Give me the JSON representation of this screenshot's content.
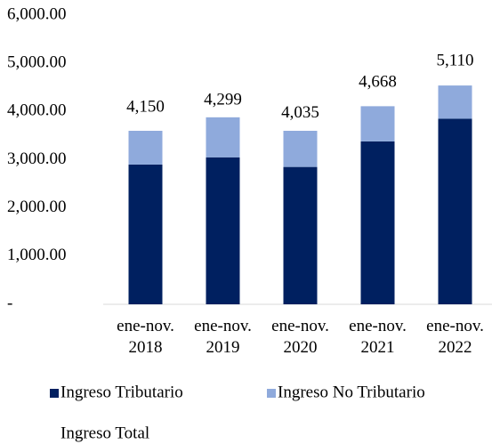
{
  "chart_data": {
    "type": "bar",
    "stacked": true,
    "categories": [
      "ene-nov. 2018",
      "ene-nov. 2019",
      "ene-nov. 2020",
      "ene-nov. 2021",
      "ene-nov. 2022"
    ],
    "series": [
      {
        "name": "Ingreso Tributario",
        "color": "#002060",
        "values": [
          2900,
          3050,
          2850,
          3380,
          3850
        ]
      },
      {
        "name": "Ingreso No Tributario",
        "color": "#8faadc",
        "values": [
          700,
          830,
          750,
          730,
          690
        ]
      },
      {
        "name": "Ingreso Total",
        "type": "line",
        "color": "none",
        "values": [
          4150,
          4299,
          4035,
          4668,
          5110
        ],
        "value_labels": [
          "4,150",
          "4,299",
          "4,035",
          "4,668",
          "5,110"
        ]
      }
    ],
    "ylim": [
      0,
      6000
    ],
    "yticks": [
      {
        "value": 0,
        "label": "-"
      },
      {
        "value": 1000,
        "label": "1,000.00"
      },
      {
        "value": 2000,
        "label": "2,000.00"
      },
      {
        "value": 3000,
        "label": "3,000.00"
      },
      {
        "value": 4000,
        "label": "4,000.00"
      },
      {
        "value": 5000,
        "label": "5,000.00"
      },
      {
        "value": 6000,
        "label": "6,000.00"
      }
    ],
    "legend": "bottom"
  }
}
